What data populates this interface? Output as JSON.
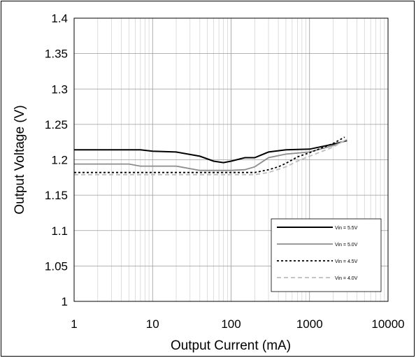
{
  "top_caption": "",
  "chart_data": {
    "type": "line",
    "title": "",
    "xlabel": "Output Current (mA)",
    "ylabel": "Output Voltage (V)",
    "xscale": "log",
    "xlim": [
      1,
      10000
    ],
    "ylim": [
      1,
      1.4
    ],
    "xticks": [
      1,
      10,
      100,
      1000,
      10000
    ],
    "xtick_labels": [
      "1",
      "10",
      "100",
      "1000",
      "10000"
    ],
    "yticks": [
      1,
      1.05,
      1.1,
      1.15,
      1.2,
      1.25,
      1.3,
      1.35,
      1.4
    ],
    "ytick_labels": [
      "1",
      "1.05",
      "1.1",
      "1.15",
      "1.2",
      "1.25",
      "1.3",
      "1.35",
      "1.4"
    ],
    "grid": true,
    "legend_position": "bottom-right",
    "series": [
      {
        "name": "Vin = 5.5V",
        "color": "#000000",
        "dash": "solid",
        "x": [
          1,
          3,
          7,
          10,
          20,
          40,
          60,
          80,
          100,
          150,
          200,
          300,
          500,
          1000,
          2000,
          3000
        ],
        "y": [
          1.214,
          1.214,
          1.214,
          1.212,
          1.211,
          1.205,
          1.198,
          1.196,
          1.198,
          1.203,
          1.203,
          1.211,
          1.214,
          1.215,
          1.222,
          1.227
        ]
      },
      {
        "name": "Vin = 5.0V",
        "color": "#8c8c8c",
        "dash": "solid",
        "x": [
          1,
          3,
          5,
          7,
          10,
          20,
          40,
          60,
          100,
          150,
          200,
          300,
          500,
          1000,
          2000,
          3000
        ],
        "y": [
          1.194,
          1.194,
          1.194,
          1.191,
          1.191,
          1.191,
          1.185,
          1.185,
          1.185,
          1.186,
          1.19,
          1.203,
          1.208,
          1.211,
          1.22,
          1.228
        ]
      },
      {
        "name": "Vin = 4.5V",
        "color": "#000000",
        "dash": "dot",
        "x": [
          1,
          10,
          50,
          100,
          150,
          200,
          300,
          400,
          500,
          700,
          1000,
          2000,
          2800
        ],
        "y": [
          1.182,
          1.182,
          1.182,
          1.182,
          1.182,
          1.182,
          1.186,
          1.19,
          1.195,
          1.204,
          1.21,
          1.223,
          1.232
        ]
      },
      {
        "name": "Vin = 4.0V",
        "color": "#bdbdbd",
        "dash": "dash",
        "x": [
          1,
          10,
          50,
          100,
          200,
          300,
          500,
          700,
          1000,
          2000,
          3000
        ],
        "y": [
          1.179,
          1.179,
          1.179,
          1.179,
          1.179,
          1.182,
          1.19,
          1.198,
          1.205,
          1.218,
          1.229
        ]
      }
    ]
  }
}
